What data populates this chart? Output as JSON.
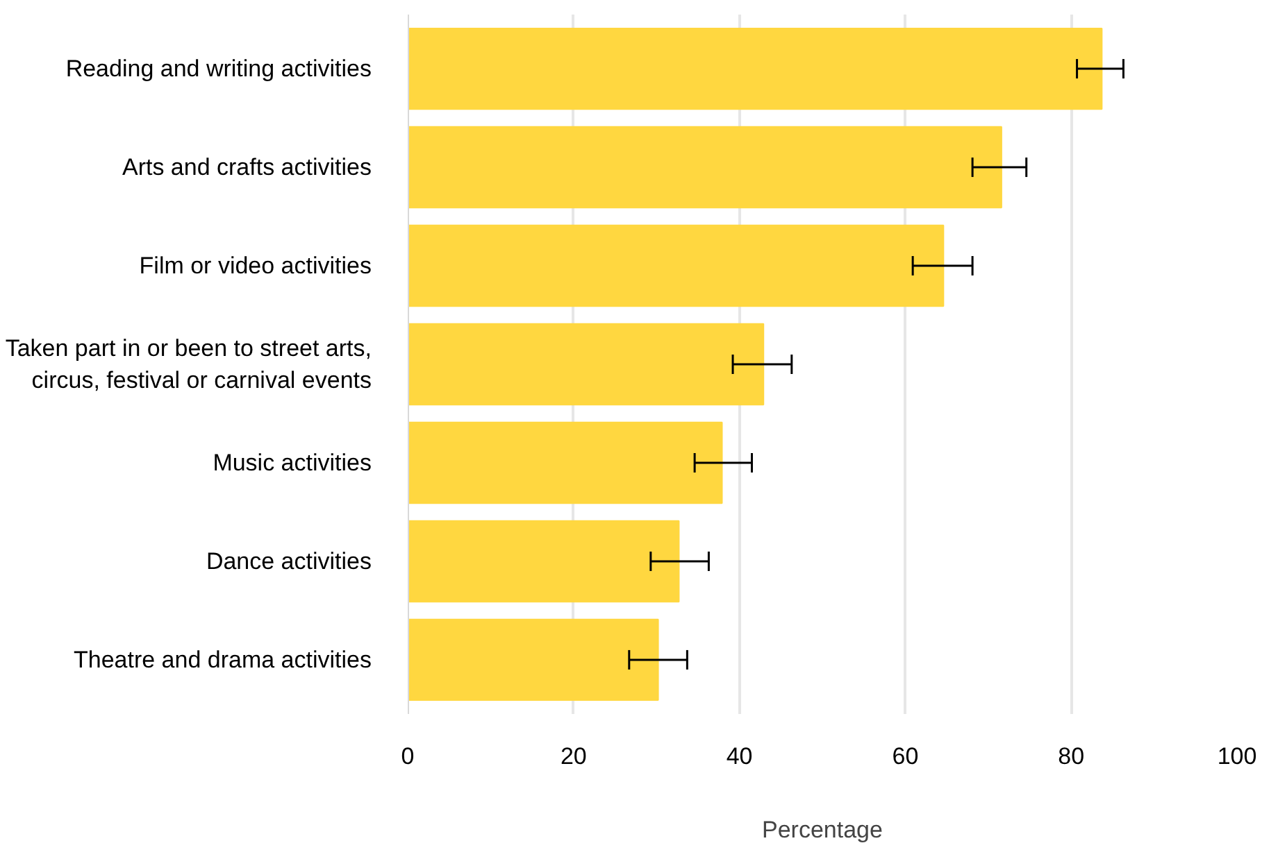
{
  "chart_data": {
    "type": "bar",
    "orientation": "horizontal",
    "xlabel": "Percentage",
    "categories": [
      "Reading and writing activities",
      "Arts and crafts activities",
      "Film or video activities",
      "Taken part in or been to street arts,\ncircus, festival or carnival events",
      "Music activities",
      "Dance activities",
      "Theatre and drama activities"
    ],
    "values": [
      83.7,
      71.6,
      64.6,
      42.9,
      37.9,
      32.7,
      30.2
    ],
    "errors": [
      [
        80.7,
        86.3
      ],
      [
        68.1,
        74.6
      ],
      [
        60.9,
        68.1
      ],
      [
        39.2,
        46.3
      ],
      [
        34.6,
        41.5
      ],
      [
        29.3,
        36.3
      ],
      [
        26.7,
        33.7
      ]
    ],
    "color": "#ffd740",
    "xlim": [
      0,
      100
    ],
    "xticks": [
      0,
      20,
      40,
      60,
      80,
      100
    ],
    "grid": "x"
  }
}
